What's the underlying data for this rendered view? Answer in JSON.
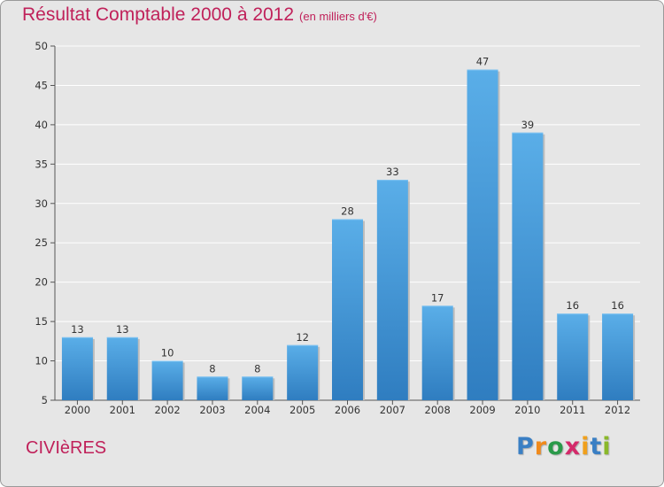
{
  "chart_data": {
    "type": "bar",
    "title": "Résultat Comptable 2000 à 2012",
    "unit": "(en milliers d'€)",
    "categories": [
      "2000",
      "2001",
      "2002",
      "2003",
      "2004",
      "2005",
      "2006",
      "2007",
      "2008",
      "2009",
      "2010",
      "2011",
      "2012"
    ],
    "values": [
      13,
      13,
      10,
      8,
      8,
      12,
      28,
      33,
      17,
      47,
      39,
      16,
      16
    ],
    "ylim": [
      5,
      50
    ],
    "yticks": [
      5,
      10,
      15,
      20,
      25,
      30,
      35,
      40,
      45,
      50
    ],
    "xlabel": "",
    "ylabel": "",
    "grid": true,
    "bar_color": "#3f8fd4"
  },
  "footer": {
    "commune": "CIVIèRES",
    "brand_letters": [
      "P",
      "r",
      "o",
      "x",
      "i",
      "t",
      "i"
    ],
    "brand_colors": [
      "#3a7fc4",
      "#f08a1c",
      "#2a9a4a",
      "#d42a6a",
      "#f0a01c",
      "#3a7fc4",
      "#8ab82a"
    ]
  }
}
